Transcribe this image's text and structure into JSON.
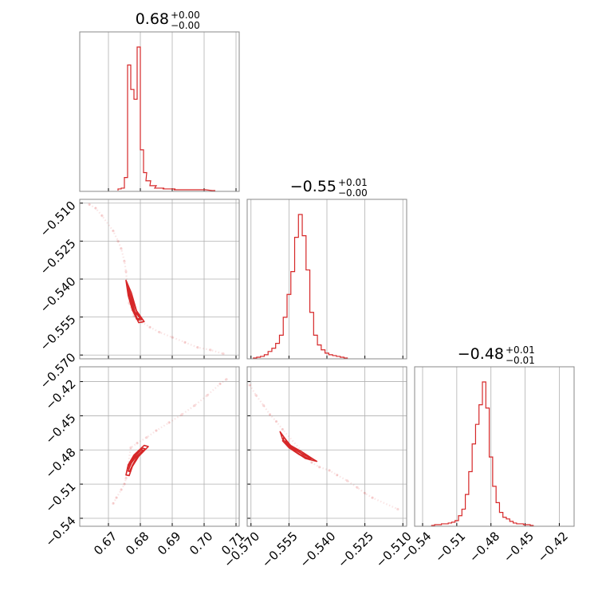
{
  "chart_data": {
    "type": "corner",
    "color": "#d62728",
    "parameters": [
      {
        "title_value": "0.68",
        "title_plus": "+0.00",
        "title_minus": "−0.00",
        "range": [
          0.661,
          0.711
        ],
        "ticks": [
          0.67,
          0.68,
          0.69,
          0.7,
          0.71
        ],
        "tick_labels": [
          "0.67",
          "0.68",
          "0.69",
          "0.70",
          "0.71"
        ]
      },
      {
        "title_value": "−0.55",
        "title_plus": "+0.01",
        "title_minus": "−0.00",
        "range": [
          -0.5715,
          -0.5085
        ],
        "ticks": [
          -0.57,
          -0.555,
          -0.54,
          -0.525,
          -0.51
        ],
        "tick_labels": [
          "−0.570",
          "−0.555",
          "−0.540",
          "−0.525",
          "−0.510"
        ]
      },
      {
        "title_value": "−0.48",
        "title_plus": "+0.01",
        "title_minus": "−0.01",
        "range": [
          -0.547,
          -0.407
        ],
        "ticks": [
          -0.54,
          -0.51,
          -0.48,
          -0.45,
          -0.42
        ],
        "tick_labels": [
          "−0.54",
          "−0.51",
          "−0.48",
          "−0.45",
          "−0.42"
        ]
      }
    ],
    "histograms": [
      {
        "x": [
          0.6735,
          0.6745,
          0.6755,
          0.6765,
          0.6775,
          0.6785,
          0.6795,
          0.6805,
          0.6815,
          0.6825,
          0.684,
          0.686,
          0.689,
          0.693,
          0.698,
          0.703
        ],
        "counts": [
          0.01,
          0.015,
          0.08,
          0.77,
          0.62,
          0.56,
          0.88,
          0.25,
          0.11,
          0.06,
          0.03,
          0.015,
          0.01,
          0.005,
          0.005,
          0.0
        ]
      },
      {
        "x": [
          -0.5685,
          -0.567,
          -0.5655,
          -0.564,
          -0.5625,
          -0.561,
          -0.5595,
          -0.558,
          -0.5565,
          -0.555,
          -0.5535,
          -0.552,
          -0.5505,
          -0.549,
          -0.5475,
          -0.546,
          -0.5445,
          -0.543,
          -0.5415,
          -0.54,
          -0.5385,
          -0.537,
          -0.5355,
          -0.534,
          -0.5325
        ],
        "counts": [
          0.0,
          0.005,
          0.01,
          0.02,
          0.04,
          0.06,
          0.09,
          0.14,
          0.25,
          0.39,
          0.53,
          0.74,
          0.88,
          0.75,
          0.54,
          0.28,
          0.14,
          0.08,
          0.05,
          0.03,
          0.02,
          0.015,
          0.01,
          0.005,
          0.0
        ]
      },
      {
        "x": [
          -0.531,
          -0.528,
          -0.525,
          -0.522,
          -0.519,
          -0.516,
          -0.513,
          -0.51,
          -0.507,
          -0.504,
          -0.501,
          -0.498,
          -0.495,
          -0.492,
          -0.489,
          -0.486,
          -0.483,
          -0.48,
          -0.477,
          -0.474,
          -0.471,
          -0.468,
          -0.465,
          -0.462,
          -0.459,
          -0.456,
          -0.453,
          -0.45,
          -0.447,
          -0.444
        ],
        "counts": [
          0.0,
          0.005,
          0.005,
          0.01,
          0.01,
          0.015,
          0.02,
          0.03,
          0.06,
          0.1,
          0.19,
          0.33,
          0.5,
          0.62,
          0.74,
          0.88,
          0.72,
          0.42,
          0.24,
          0.14,
          0.08,
          0.05,
          0.04,
          0.025,
          0.015,
          0.01,
          0.01,
          0.005,
          0.005,
          0.0
        ]
      }
    ],
    "scatter": [
      {
        "pair": [
          0,
          1
        ],
        "points": [
          [
            0.664,
            -0.5105
          ],
          [
            0.666,
            -0.512
          ],
          [
            0.668,
            -0.515
          ],
          [
            0.6715,
            -0.521
          ],
          [
            0.673,
            -0.525
          ],
          [
            0.674,
            -0.528
          ],
          [
            0.675,
            -0.533
          ],
          [
            0.6755,
            -0.537
          ],
          [
            0.6765,
            -0.5495
          ],
          [
            0.678,
            -0.5545
          ],
          [
            0.6805,
            -0.557
          ],
          [
            0.683,
            -0.559
          ],
          [
            0.686,
            -0.561
          ],
          [
            0.69,
            -0.563
          ],
          [
            0.694,
            -0.565
          ],
          [
            0.698,
            -0.567
          ],
          [
            0.702,
            -0.568
          ],
          [
            0.706,
            -0.5695
          ]
        ],
        "contours": [
          [
            [
              0.6755,
              -0.5405
            ],
            [
              0.6772,
              -0.5455
            ],
            [
              0.6788,
              -0.5525
            ],
            [
              0.6812,
              -0.5568
            ],
            [
              0.6795,
              -0.5572
            ],
            [
              0.6775,
              -0.5522
            ],
            [
              0.6762,
              -0.5465
            ],
            [
              0.6755,
              -0.5405
            ]
          ],
          [
            [
              0.6762,
              -0.5435
            ],
            [
              0.6776,
              -0.5485
            ],
            [
              0.679,
              -0.5535
            ],
            [
              0.6805,
              -0.556
            ],
            [
              0.6792,
              -0.5562
            ],
            [
              0.6778,
              -0.5515
            ],
            [
              0.6766,
              -0.547
            ],
            [
              0.6762,
              -0.5435
            ]
          ],
          [
            [
              0.6758,
              -0.542
            ],
            [
              0.677,
              -0.547
            ],
            [
              0.6783,
              -0.553
            ],
            [
              0.68,
              -0.5555
            ],
            [
              0.6788,
              -0.5558
            ],
            [
              0.6774,
              -0.551
            ],
            [
              0.6762,
              -0.5455
            ],
            [
              0.6758,
              -0.542
            ]
          ]
        ]
      },
      {
        "pair": [
          0,
          2
        ],
        "points": [
          [
            0.6715,
            -0.527
          ],
          [
            0.6725,
            -0.522
          ],
          [
            0.674,
            -0.515
          ],
          [
            0.675,
            -0.51
          ],
          [
            0.6755,
            -0.505
          ],
          [
            0.677,
            -0.478
          ],
          [
            0.679,
            -0.474
          ],
          [
            0.682,
            -0.469
          ],
          [
            0.685,
            -0.463
          ],
          [
            0.689,
            -0.456
          ],
          [
            0.693,
            -0.449
          ],
          [
            0.697,
            -0.441
          ],
          [
            0.701,
            -0.432
          ],
          [
            0.705,
            -0.422
          ],
          [
            0.707,
            -0.418
          ]
        ],
        "contours": [
          [
            [
              0.6755,
              -0.502
            ],
            [
              0.6762,
              -0.493
            ],
            [
              0.678,
              -0.4845
            ],
            [
              0.6812,
              -0.476
            ],
            [
              0.6825,
              -0.477
            ],
            [
              0.6795,
              -0.4855
            ],
            [
              0.6775,
              -0.4945
            ],
            [
              0.6765,
              -0.5025
            ],
            [
              0.6755,
              -0.502
            ]
          ],
          [
            [
              0.6762,
              -0.4985
            ],
            [
              0.677,
              -0.4915
            ],
            [
              0.6786,
              -0.4845
            ],
            [
              0.6808,
              -0.4785
            ],
            [
              0.6815,
              -0.479
            ],
            [
              0.679,
              -0.486
            ],
            [
              0.6776,
              -0.493
            ],
            [
              0.6766,
              -0.499
            ],
            [
              0.6762,
              -0.4985
            ]
          ],
          [
            [
              0.676,
              -0.496
            ],
            [
              0.6768,
              -0.4905
            ],
            [
              0.6782,
              -0.485
            ],
            [
              0.6802,
              -0.48
            ],
            [
              0.6808,
              -0.4805
            ],
            [
              0.6786,
              -0.486
            ],
            [
              0.6772,
              -0.4915
            ],
            [
              0.6764,
              -0.4965
            ],
            [
              0.676,
              -0.496
            ]
          ]
        ]
      },
      {
        "pair": [
          1,
          2
        ],
        "points": [
          [
            -0.5705,
            -0.423
          ],
          [
            -0.568,
            -0.432
          ],
          [
            -0.565,
            -0.441
          ],
          [
            -0.5625,
            -0.449
          ],
          [
            -0.56,
            -0.455
          ],
          [
            -0.5575,
            -0.462
          ],
          [
            -0.546,
            -0.491
          ],
          [
            -0.543,
            -0.495
          ],
          [
            -0.539,
            -0.498
          ],
          [
            -0.536,
            -0.502
          ],
          [
            -0.532,
            -0.507
          ],
          [
            -0.528,
            -0.513
          ],
          [
            -0.525,
            -0.518
          ],
          [
            -0.522,
            -0.522
          ],
          [
            -0.512,
            -0.532
          ]
        ],
        "contours": [
          [
            [
              -0.5585,
              -0.464
            ],
            [
              -0.5548,
              -0.4755
            ],
            [
              -0.55,
              -0.4815
            ],
            [
              -0.5455,
              -0.488
            ],
            [
              -0.544,
              -0.49
            ],
            [
              -0.5485,
              -0.4875
            ],
            [
              -0.5525,
              -0.4815
            ],
            [
              -0.5575,
              -0.4705
            ],
            [
              -0.5585,
              -0.464
            ]
          ],
          [
            [
              -0.557,
              -0.469
            ],
            [
              -0.554,
              -0.477
            ],
            [
              -0.55,
              -0.483
            ],
            [
              -0.546,
              -0.4875
            ],
            [
              -0.547,
              -0.488
            ],
            [
              -0.551,
              -0.484
            ],
            [
              -0.555,
              -0.478
            ],
            [
              -0.5575,
              -0.472
            ],
            [
              -0.557,
              -0.469
            ]
          ],
          [
            [
              -0.5562,
              -0.472
            ],
            [
              -0.5532,
              -0.479
            ],
            [
              -0.5494,
              -0.484
            ],
            [
              -0.5466,
              -0.4868
            ],
            [
              -0.5478,
              -0.487
            ],
            [
              -0.5508,
              -0.4838
            ],
            [
              -0.5544,
              -0.4784
            ],
            [
              -0.5566,
              -0.4736
            ],
            [
              -0.5562,
              -0.472
            ]
          ]
        ]
      }
    ],
    "grid": true,
    "legend": "none"
  }
}
